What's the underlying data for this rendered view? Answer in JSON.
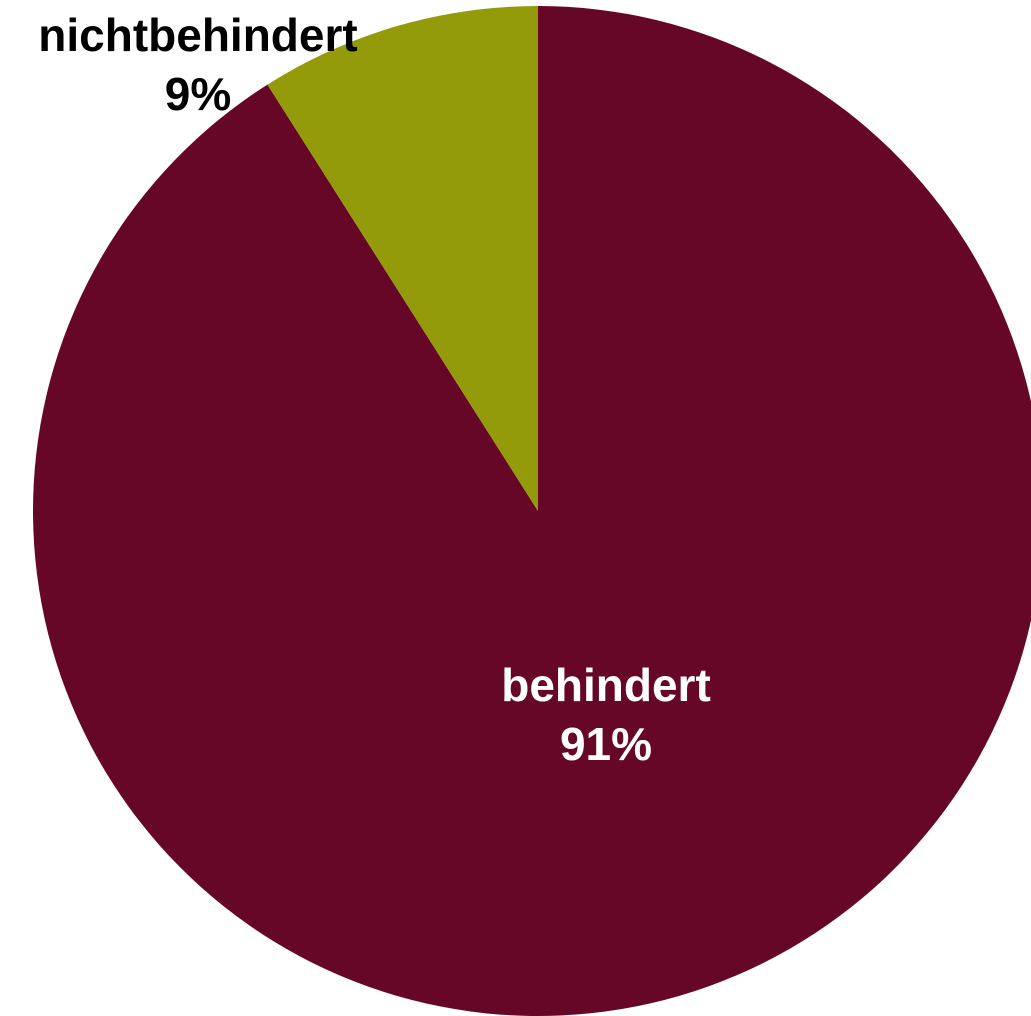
{
  "chart_data": {
    "type": "pie",
    "slices": [
      {
        "label": "behindert",
        "value": 91,
        "value_label": "91%",
        "color": "#660727",
        "label_color": "#ffffff"
      },
      {
        "label": "nichtbehindert",
        "value": 9,
        "value_label": "9%",
        "color": "#939b0a",
        "label_color": "#000000"
      }
    ],
    "start": "12 o'clock",
    "direction": "clockwise",
    "legend": "none"
  }
}
